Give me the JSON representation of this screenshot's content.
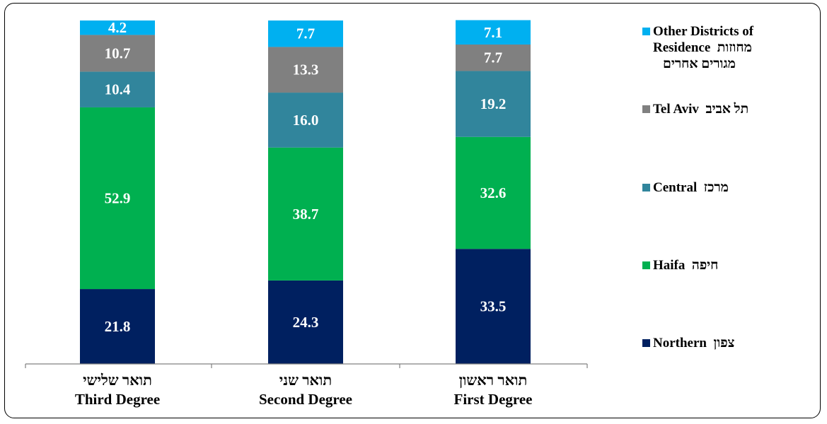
{
  "chart_data": {
    "type": "bar",
    "stacked": true,
    "categories": [
      {
        "en": "Third Degree",
        "he": "תואר שלישי"
      },
      {
        "en": "Second Degree",
        "he": "תואר שני"
      },
      {
        "en": "First Degree",
        "he": "תואר ראשון"
      }
    ],
    "series": [
      {
        "name": "Northern",
        "name_he": "צפון",
        "color": "#002060",
        "values": [
          21.8,
          24.3,
          33.5
        ]
      },
      {
        "name": "Haifa",
        "name_he": "חיפה",
        "color": "#00B050",
        "values": [
          52.9,
          38.7,
          32.6
        ]
      },
      {
        "name": "Central",
        "name_he": "מרכז",
        "color": "#31859C",
        "values": [
          10.4,
          16.0,
          19.2
        ]
      },
      {
        "name": "Tel Aviv",
        "name_he": "תל אביב",
        "color": "#808080",
        "values": [
          10.7,
          13.3,
          7.7
        ]
      },
      {
        "name": "Other Districts of Residence",
        "name_he": "מחוזות מגורים אחרים",
        "color": "#00B0F0",
        "values": [
          4.2,
          7.7,
          7.1
        ]
      }
    ],
    "ylim": [
      0,
      100
    ],
    "grid": false,
    "legend_position": "right",
    "value_label_color": "#ffffff"
  },
  "legend": [
    {
      "lines": [
        {
          "en": "Other Districts of",
          "he": ""
        },
        {
          "en": "Residence",
          "he": "מחוזות"
        },
        {
          "en": "",
          "he": "מגורים אחרים"
        }
      ]
    },
    {
      "lines": [
        {
          "en": "Tel Aviv",
          "he": "תל אביב"
        }
      ]
    },
    {
      "lines": [
        {
          "en": "Central",
          "he": "מרכז"
        }
      ]
    },
    {
      "lines": [
        {
          "en": "Haifa",
          "he": "חיפה"
        }
      ]
    },
    {
      "lines": [
        {
          "en": "Northern",
          "he": "צפון"
        }
      ]
    }
  ]
}
